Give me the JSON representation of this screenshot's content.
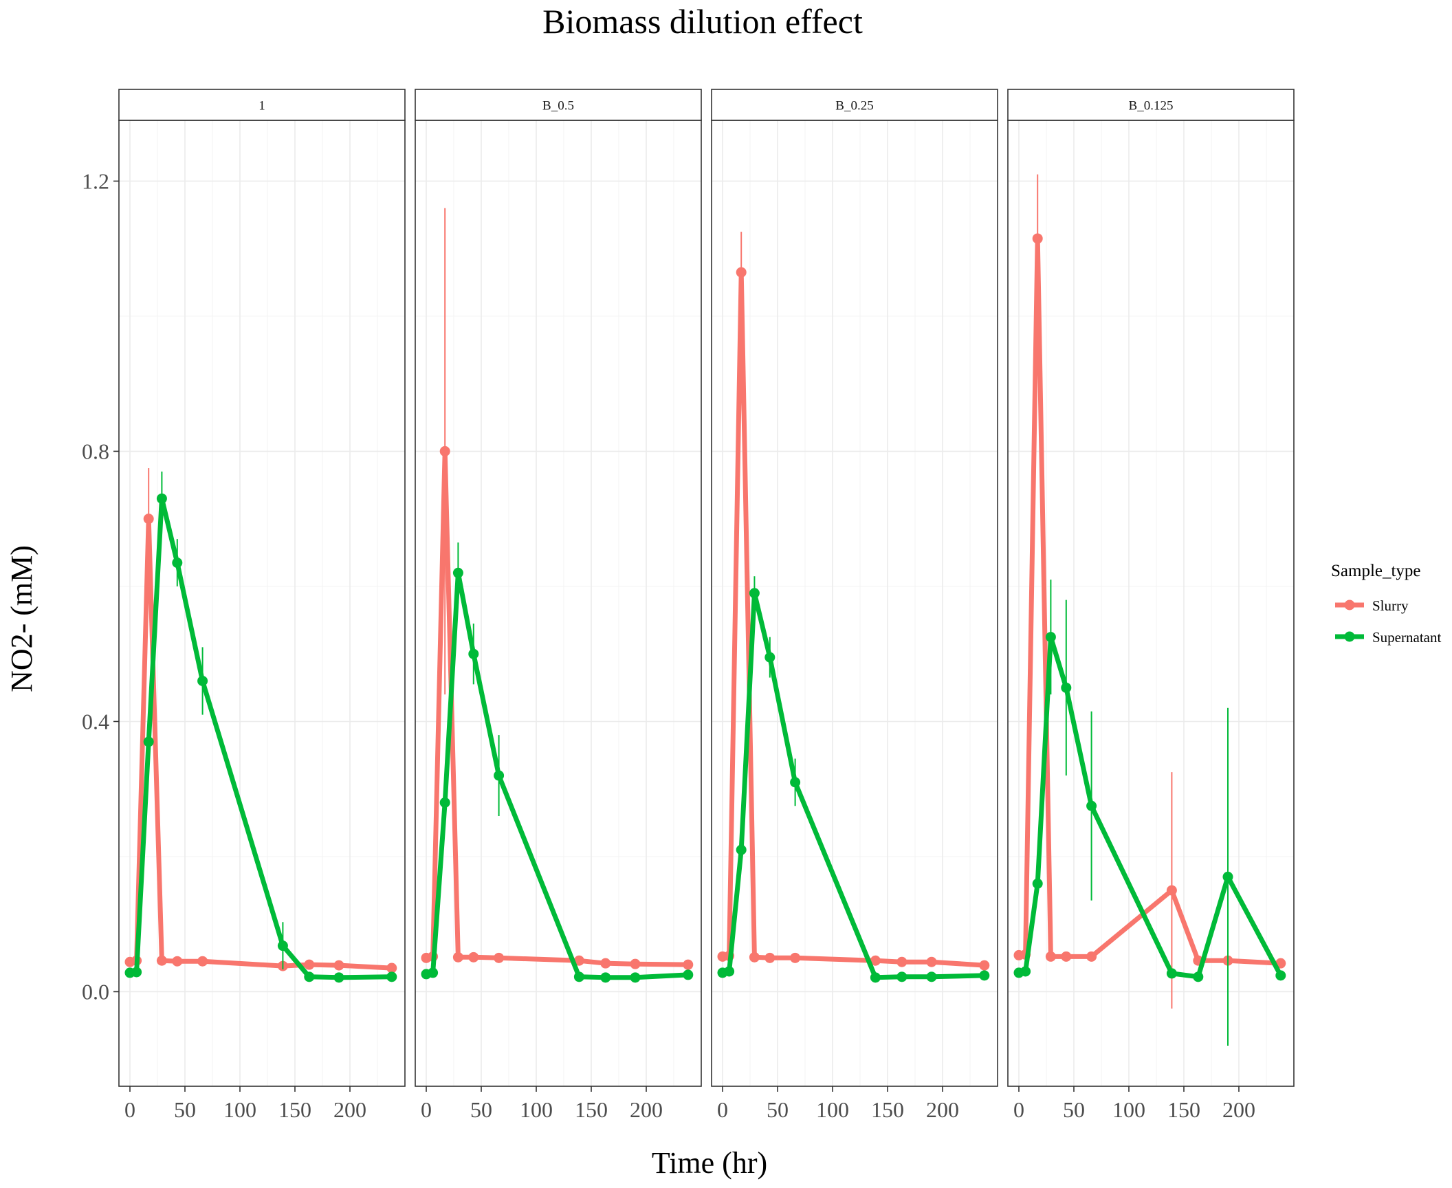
{
  "chart_data": {
    "type": "line",
    "title": "Biomass dilution effect",
    "xlabel": "Time (hr)",
    "ylabel": "NO2- (mM)",
    "xlim": [
      -10,
      250
    ],
    "ylim": [
      -0.14,
      1.29
    ],
    "x_ticks": [
      0,
      50,
      100,
      150,
      200
    ],
    "y_ticks": [
      0.0,
      0.4,
      0.8,
      1.2
    ],
    "y_tick_labels": [
      "0.0",
      "0.4",
      "0.8",
      "1.2"
    ],
    "grid": true,
    "legend": {
      "title": "Sample_type",
      "position": "right",
      "entries": [
        {
          "name": "Slurry",
          "color": "#F8766D"
        },
        {
          "name": "Supernatant",
          "color": "#00BA38"
        }
      ]
    },
    "facets": [
      {
        "label": "1",
        "series": [
          {
            "name": "Slurry",
            "color": "#F8766D",
            "x": [
              0,
              6,
              17,
              29,
              43,
              66,
              139,
              163,
              190,
              238
            ],
            "y": [
              0.044,
              0.046,
              0.7,
              0.046,
              0.045,
              0.045,
              0.038,
              0.04,
              0.039,
              0.035
            ],
            "err": [
              0,
              0,
              0.075,
              0,
              0,
              0,
              0,
              0,
              0,
              0
            ]
          },
          {
            "name": "Supernatant",
            "color": "#00BA38",
            "x": [
              0,
              6,
              17,
              29,
              43,
              66,
              139,
              163,
              190,
              238
            ],
            "y": [
              0.028,
              0.029,
              0.37,
              0.73,
              0.635,
              0.46,
              0.068,
              0.022,
              0.021,
              0.022
            ],
            "err": [
              0,
              0,
              0,
              0.04,
              0.035,
              0.05,
              0.035,
              0,
              0,
              0
            ]
          }
        ]
      },
      {
        "label": "B_0.5",
        "series": [
          {
            "name": "Slurry",
            "color": "#F8766D",
            "x": [
              0,
              6,
              17,
              29,
              43,
              66,
              139,
              163,
              190,
              238
            ],
            "y": [
              0.05,
              0.052,
              0.8,
              0.051,
              0.051,
              0.05,
              0.046,
              0.042,
              0.041,
              0.04
            ],
            "err": [
              0,
              0,
              0.36,
              0,
              0,
              0,
              0,
              0,
              0,
              0
            ]
          },
          {
            "name": "Supernatant",
            "color": "#00BA38",
            "x": [
              0,
              6,
              17,
              29,
              43,
              66,
              139,
              163,
              190,
              238
            ],
            "y": [
              0.026,
              0.028,
              0.28,
              0.62,
              0.5,
              0.32,
              0.022,
              0.021,
              0.021,
              0.025
            ],
            "err": [
              0,
              0,
              0,
              0.045,
              0.045,
              0.06,
              0,
              0,
              0,
              0
            ]
          }
        ]
      },
      {
        "label": "B_0.25",
        "series": [
          {
            "name": "Slurry",
            "color": "#F8766D",
            "x": [
              0,
              6,
              17,
              29,
              43,
              66,
              139,
              163,
              190,
              238
            ],
            "y": [
              0.052,
              0.053,
              1.065,
              0.051,
              0.05,
              0.05,
              0.046,
              0.044,
              0.044,
              0.039
            ],
            "err": [
              0,
              0,
              0.06,
              0,
              0,
              0,
              0,
              0,
              0,
              0
            ]
          },
          {
            "name": "Supernatant",
            "color": "#00BA38",
            "x": [
              0,
              6,
              17,
              29,
              43,
              66,
              139,
              163,
              190,
              238
            ],
            "y": [
              0.028,
              0.03,
              0.21,
              0.59,
              0.495,
              0.31,
              0.021,
              0.022,
              0.022,
              0.024
            ],
            "err": [
              0,
              0,
              0,
              0.025,
              0.03,
              0.035,
              0,
              0,
              0,
              0
            ]
          }
        ]
      },
      {
        "label": "B_0.125",
        "series": [
          {
            "name": "Slurry",
            "color": "#F8766D",
            "x": [
              0,
              6,
              17,
              29,
              43,
              66,
              139,
              163,
              190,
              238
            ],
            "y": [
              0.054,
              0.055,
              1.115,
              0.052,
              0.052,
              0.052,
              0.15,
              0.046,
              0.046,
              0.042
            ],
            "err": [
              0,
              0,
              0.095,
              0,
              0,
              0,
              0.175,
              0,
              0,
              0
            ]
          },
          {
            "name": "Supernatant",
            "color": "#00BA38",
            "x": [
              0,
              6,
              17,
              29,
              43,
              66,
              139,
              163,
              190,
              238
            ],
            "y": [
              0.028,
              0.03,
              0.16,
              0.525,
              0.45,
              0.275,
              0.027,
              0.022,
              0.17,
              0.024
            ],
            "err": [
              0,
              0,
              0,
              0.085,
              0.13,
              0.14,
              0,
              0,
              0.25,
              0
            ]
          }
        ]
      }
    ]
  }
}
